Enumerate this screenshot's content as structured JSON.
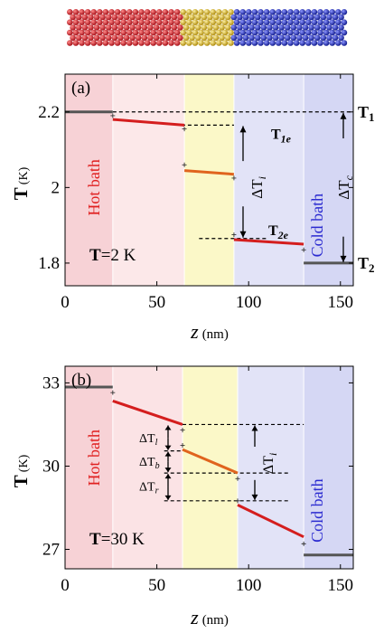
{
  "colors": {
    "hot_region": "#f7d2d6",
    "hot_region_light": "#fbe3e5",
    "left_lead_light": "#fce8e9",
    "middle_region": "#fbf8c8",
    "right_lead": "#e2e3f7",
    "cold_region": "#d5d7f4",
    "hot_text": "#e02020",
    "cold_text": "#2a2ad0",
    "red_series": "#d41e1e",
    "orange_series": "#e0641e",
    "grey_series": "#555555",
    "atom_red": "#d9222a",
    "atom_yellow": "#e0c020",
    "atom_blue": "#2a36c8"
  },
  "chart_data": [
    {
      "type": "line",
      "panel_label": "(a)",
      "xlabel": "z",
      "xlabel_unit": "(nm)",
      "ylabel": "T",
      "ylabel_unit": "(K)",
      "xlim": [
        0,
        157
      ],
      "ylim": [
        1.74,
        2.3
      ],
      "xticks": [
        0,
        50,
        100,
        150
      ],
      "yticks": [
        1.8,
        2.0,
        2.2
      ],
      "ytick_labels": [
        "1.8",
        "2",
        "2.2"
      ],
      "regions": [
        {
          "x0": 0,
          "x1": 26,
          "color_key": "hot_region"
        },
        {
          "x0": 26,
          "x1": 65,
          "color_key": "left_lead_light"
        },
        {
          "x0": 65,
          "x1": 92,
          "color_key": "middle_region"
        },
        {
          "x0": 92,
          "x1": 130,
          "color_key": "right_lead"
        },
        {
          "x0": 130,
          "x1": 157,
          "color_key": "cold_region"
        }
      ],
      "series": [
        {
          "color_key": "grey_series",
          "points": [
            [
              0,
              2.2
            ],
            [
              26,
              2.2
            ]
          ]
        },
        {
          "color_key": "red_series",
          "points": [
            [
              26,
              2.18
            ],
            [
              65,
              2.165
            ]
          ]
        },
        {
          "color_key": "orange_series",
          "points": [
            [
              65,
              2.045
            ],
            [
              92,
              2.035
            ]
          ]
        },
        {
          "color_key": "red_series",
          "points": [
            [
              92,
              1.862
            ],
            [
              130,
              1.85
            ]
          ]
        },
        {
          "color_key": "grey_series",
          "points": [
            [
              130,
              1.8
            ],
            [
              157,
              1.8
            ]
          ]
        }
      ],
      "jump_points": [
        [
          26,
          2.19
        ],
        [
          65,
          2.155
        ],
        [
          65,
          2.06
        ],
        [
          92,
          2.025
        ],
        [
          92,
          1.875
        ],
        [
          130,
          1.835
        ]
      ],
      "dashed_lines": [
        {
          "y": 2.2,
          "x0": 26,
          "x1": 157
        },
        {
          "y": 2.165,
          "x0": 60,
          "x1": 92
        },
        {
          "y": 1.865,
          "x0": 73,
          "x1": 110
        }
      ],
      "labels": {
        "hot_bath": "Hot bath",
        "cold_bath": "Cold bath",
        "condition_T": "T",
        "condition_value": "=2 K",
        "T1": "T",
        "T1_sub": "1",
        "T2": "T",
        "T2_sub": "2",
        "T1e": "T",
        "T1e_sub": "1e",
        "T2e": "T",
        "T2e_sub": "2e",
        "dTi": "ΔT",
        "dTi_sub": "i",
        "dTc": "ΔT",
        "dTc_sub": "c"
      }
    },
    {
      "type": "line",
      "panel_label": "(b)",
      "xlabel": "z",
      "xlabel_unit": "(nm)",
      "ylabel": "T",
      "ylabel_unit": "(K)",
      "xlim": [
        0,
        157
      ],
      "ylim": [
        26.3,
        33.6
      ],
      "xticks": [
        0,
        50,
        100,
        150
      ],
      "yticks": [
        27,
        30,
        33
      ],
      "ytick_labels": [
        "27",
        "30",
        "33"
      ],
      "regions": [
        {
          "x0": 0,
          "x1": 26,
          "color_key": "hot_region"
        },
        {
          "x0": 26,
          "x1": 64,
          "color_key": "hot_region_light"
        },
        {
          "x0": 64,
          "x1": 94,
          "color_key": "middle_region"
        },
        {
          "x0": 94,
          "x1": 130,
          "color_key": "right_lead"
        },
        {
          "x0": 130,
          "x1": 157,
          "color_key": "cold_region"
        }
      ],
      "series": [
        {
          "color_key": "grey_series",
          "points": [
            [
              0,
              32.85
            ],
            [
              26,
              32.85
            ]
          ]
        },
        {
          "color_key": "red_series",
          "points": [
            [
              26,
              32.35
            ],
            [
              64,
              31.5
            ]
          ]
        },
        {
          "color_key": "orange_series",
          "points": [
            [
              64,
              30.6
            ],
            [
              94,
              29.75
            ]
          ]
        },
        {
          "color_key": "red_series",
          "points": [
            [
              94,
              28.6
            ],
            [
              130,
              27.45
            ]
          ]
        },
        {
          "color_key": "grey_series",
          "points": [
            [
              130,
              26.8
            ],
            [
              157,
              26.8
            ]
          ]
        }
      ],
      "jump_points": [
        [
          26,
          32.65
        ],
        [
          64,
          31.3
        ],
        [
          64,
          30.75
        ],
        [
          94,
          29.55
        ],
        [
          94,
          28.75
        ],
        [
          130,
          27.2
        ]
      ],
      "dashed_lines": [
        {
          "y": 31.5,
          "x0": 64,
          "x1": 130
        },
        {
          "y": 30.55,
          "x0": 54,
          "x1": 64
        },
        {
          "y": 29.75,
          "x0": 54,
          "x1": 122
        },
        {
          "y": 28.75,
          "x0": 54,
          "x1": 122
        }
      ],
      "labels": {
        "hot_bath": "Hot bath",
        "cold_bath": "Cold bath",
        "condition_T": "T",
        "condition_value": "=30 K",
        "dTl": "ΔT",
        "dTl_sub": "l",
        "dTb": "ΔT",
        "dTb_sub": "b",
        "dTr": "ΔT",
        "dTr_sub": "r",
        "dTi": "ΔT",
        "dTi_sub": "i"
      }
    }
  ]
}
